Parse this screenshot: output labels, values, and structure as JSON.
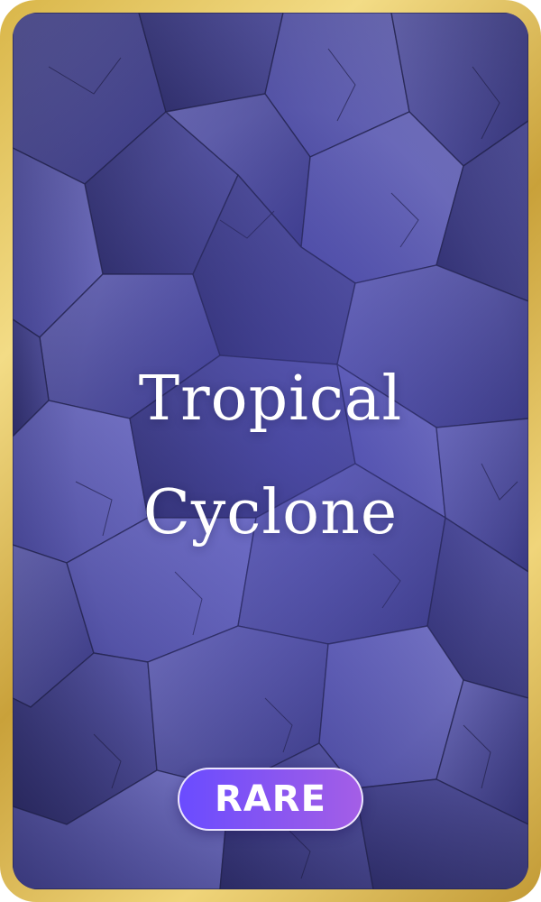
{
  "card": {
    "title_line1": "Tropical",
    "title_line2": "Cyclone",
    "rarity": "RARE"
  },
  "colors": {
    "frame_gold": "#d9b649",
    "background": "#3f3d98",
    "badge_start": "#6a4cff",
    "badge_end": "#a45ee6",
    "text": "#ffffff"
  }
}
